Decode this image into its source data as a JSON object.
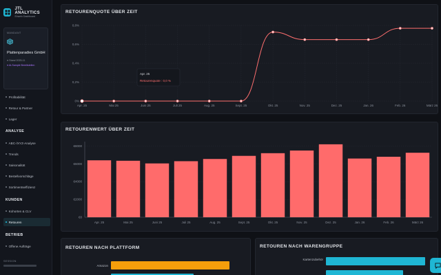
{
  "brand": {
    "title": "JTL ANALYTICS",
    "subtitle": "Einzeln Dashboard"
  },
  "tenant": {
    "label": "MANDANT",
    "name": "Plattenparadies GmbH",
    "stand": "● Stand 2025-11",
    "status": "● Ai-Sample Bereitstellen"
  },
  "nav": {
    "top_items": [
      "Profitabilität",
      "Retour & Partner",
      "Lager"
    ],
    "section_analyse": "ANALYSE",
    "analyse_items": [
      "ABC-/XYZ-Analyse",
      "Trends",
      "Saisonalität",
      "Bestellvorschläge",
      "Sortimentseffizienz"
    ],
    "section_kunden": "KUNDEN",
    "kunden_items": [
      "Kohorten & CLV",
      "Retouren"
    ],
    "section_betrieb": "BETRIEB",
    "betrieb_items": [
      "Offene Aufträge"
    ],
    "session_label": "SESSION"
  },
  "panels": {
    "quote_title": "RETOURENQUOTE ÜBER ZEIT",
    "value_title": "RETOURENWERT ÜBER ZEIT",
    "platform_title": "RETOUREN NACH PLATTFORM",
    "group_title": "RETOUREN NACH WARENGRUPPE"
  },
  "tooltip": {
    "title": "Apr. 25",
    "value": "Retourenquote : 0,0 %"
  },
  "chart_data": [
    {
      "type": "line",
      "title": "RETOURENQUOTE ÜBER ZEIT",
      "categories": [
        "Apr. 25",
        "Mai 25",
        "Juni 25",
        "Juli 25",
        "Aug. 25",
        "Sept. 25",
        "Okt. 25",
        "Nov. 25",
        "Dez. 25",
        "Jan. 26",
        "Feb. 26",
        "März 26"
      ],
      "values": [
        0.0,
        0.0,
        0.0,
        0.0,
        0.0,
        0.0,
        0.73,
        0.65,
        0.65,
        0.65,
        0.77,
        0.77
      ],
      "yticks": [
        "0%",
        "0,2%",
        "0,4%",
        "0,6%",
        "0,8%"
      ],
      "ylim": [
        0,
        0.8
      ],
      "color": "#ff6f6f"
    },
    {
      "type": "bar",
      "title": "RETOURENWERT ÜBER ZEIT",
      "categories": [
        "Apr. 25",
        "Mai 25",
        "Juni 25",
        "Juli 25",
        "Aug. 25",
        "Sept. 25",
        "Okt. 25",
        "Nov. 25",
        "Dez. 25",
        "Jan. 26",
        "Feb. 26",
        "März 26"
      ],
      "values": [
        6400,
        6350,
        6050,
        6300,
        6550,
        6900,
        7200,
        7500,
        8200,
        6600,
        6800,
        7250
      ],
      "yticks": [
        "€0",
        "€2000",
        "€4000",
        "€6000",
        "€8000"
      ],
      "ylim": [
        0,
        8500
      ],
      "color": "#ff6b6b"
    },
    {
      "type": "bar",
      "title": "RETOUREN NACH PLATTFORM",
      "categories": [
        "Amazon"
      ],
      "values": [
        100
      ],
      "color": "#f59e0b"
    },
    {
      "type": "bar",
      "title": "RETOUREN NACH WARENGRUPPE",
      "categories": [
        "Kartenzubehör"
      ],
      "values": [
        100
      ],
      "color": "#1fb6d4"
    }
  ],
  "colors": {
    "accent": "#1fb6d4",
    "line": "#ff6f6f",
    "bar": "#ff6b6b",
    "amazon": "#f59e0b"
  }
}
